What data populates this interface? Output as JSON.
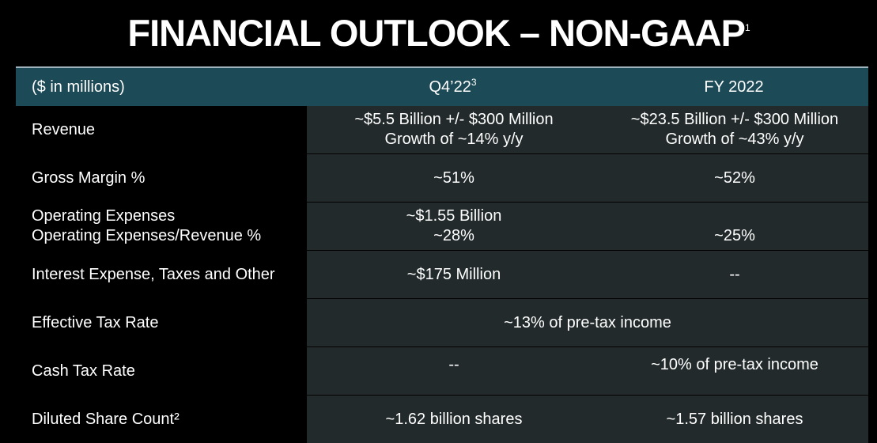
{
  "title": "FINANCIAL OUTLOOK – NON-GAAP",
  "title_footnote": "1",
  "header": {
    "col1": "($ in millions)",
    "col2": "Q4’22",
    "col2_footnote": "3",
    "col3": "FY 2022"
  },
  "rows": [
    {
      "label": "Revenue",
      "q4_line1": "~$5.5 Billion +/- $300 Million",
      "q4_line2": "Growth of ~14% y/y",
      "fy_line1": "~$23.5 Billion +/- $300 Million",
      "fy_line2": "Growth of ~43% y/y"
    },
    {
      "label": "Gross Margin %",
      "q4": "~51%",
      "fy": "~52%"
    },
    {
      "label_line1": "Operating Expenses",
      "label_line2": "Operating Expenses/Revenue %",
      "q4_line1": "~$1.55 Billion",
      "q4_line2": "~28%",
      "fy_line2": "~25%"
    },
    {
      "label": "Interest Expense, Taxes and Other",
      "q4": "~$175 Million",
      "fy": "--"
    },
    {
      "label": "Effective Tax Rate",
      "combined": "~13% of pre-tax income"
    },
    {
      "label": "Cash Tax Rate",
      "q4": "--",
      "fy": "~10% of pre-tax income"
    },
    {
      "label": "Diluted Share Count²",
      "q4": "~1.62 billion shares",
      "fy": "~1.57 billion shares"
    }
  ],
  "colors": {
    "header_bg": "#1c4a56",
    "cell_bg": "#222a2c",
    "background": "#000000"
  }
}
